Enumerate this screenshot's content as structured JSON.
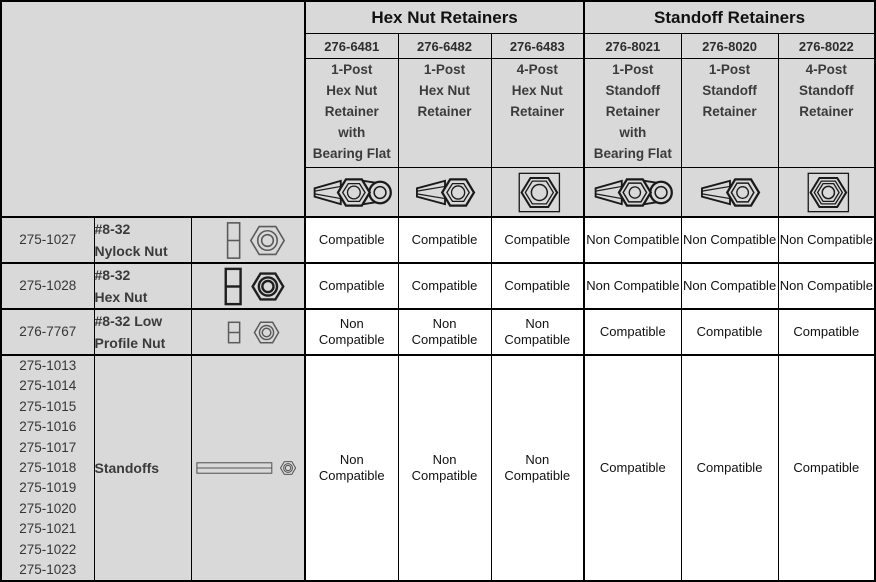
{
  "colors": {
    "cell_gray": "#d9d9d9",
    "border": "#000000",
    "group_header_text": "#111111",
    "gray_section_text": "#3b3b3b",
    "value_text": "#111111",
    "data_cell_background": "#ffffff"
  },
  "table": {
    "groups": [
      {
        "label": "Hex Nut Retainers"
      },
      {
        "label": "Standoff Retainers"
      }
    ],
    "columns": [
      {
        "part_number": "276-6481",
        "description_lines": [
          "1-Post",
          "Hex Nut",
          "Retainer",
          "with",
          "Bearing Flat"
        ],
        "icon": "retainer-1post-bearing-flat-icon"
      },
      {
        "part_number": "276-6482",
        "description_lines": [
          "1-Post",
          "Hex Nut",
          "Retainer"
        ],
        "icon": "retainer-1post-icon"
      },
      {
        "part_number": "276-6483",
        "description_lines": [
          "4-Post",
          "Hex Nut",
          "Retainer"
        ],
        "icon": "retainer-4post-icon"
      },
      {
        "part_number": "276-8021",
        "description_lines": [
          "1-Post",
          "Standoff",
          "Retainer",
          "with",
          "Bearing Flat"
        ],
        "icon": "retainer-1post-bearing-flat-icon"
      },
      {
        "part_number": "276-8020",
        "description_lines": [
          "1-Post",
          "Standoff",
          "Retainer"
        ],
        "icon": "retainer-1post-icon"
      },
      {
        "part_number": "276-8022",
        "description_lines": [
          "4-Post",
          "Standoff",
          "Retainer"
        ],
        "icon": "retainer-4post-icon"
      }
    ],
    "rows": [
      {
        "part_numbers": [
          "275-1027"
        ],
        "name_lines": [
          "#8-32",
          "Nylock Nut"
        ],
        "icon": "nylock-nut-icon",
        "values": [
          "Compatible",
          "Compatible",
          "Compatible",
          "Non Compatible",
          "Non Compatible",
          "Non Compatible"
        ]
      },
      {
        "part_numbers": [
          "275-1028"
        ],
        "name_lines": [
          "#8-32",
          "Hex Nut"
        ],
        "icon": "hex-nut-icon",
        "values": [
          "Compatible",
          "Compatible",
          "Compatible",
          "Non Compatible",
          "Non Compatible",
          "Non Compatible"
        ]
      },
      {
        "part_numbers": [
          "276-7767"
        ],
        "name_lines": [
          "#8-32 Low",
          "Profile Nut"
        ],
        "icon": "low-profile-nut-icon",
        "values": [
          "Non Compatible",
          "Non Compatible",
          "Non Compatible",
          "Compatible",
          "Compatible",
          "Compatible"
        ]
      },
      {
        "part_numbers": [
          "275-1013",
          "275-1014",
          "275-1015",
          "275-1016",
          "275-1017",
          "275-1018",
          "275-1019",
          "275-1020",
          "275-1021",
          "275-1022",
          "275-1023"
        ],
        "name_lines": [
          "Standoffs"
        ],
        "icon": "standoff-icon",
        "values": [
          "Non Compatible",
          "Non Compatible",
          "Non Compatible",
          "Compatible",
          "Compatible",
          "Compatible"
        ]
      }
    ]
  }
}
